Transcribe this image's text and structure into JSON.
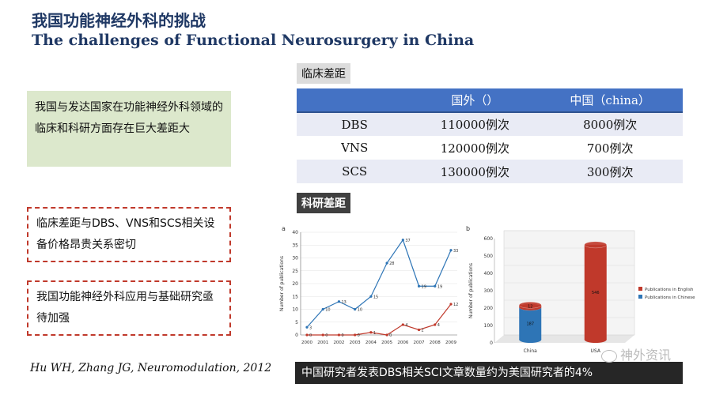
{
  "header": {
    "title_cn": "我国功能神经外科的挑战",
    "title_en": "The challenges of Functional Neurosurgery in China"
  },
  "left": {
    "green_text": "我国与发达国家在功能神经外科领域的临床和科研方面存在巨大差距大",
    "red_box_1": "临床差距与DBS、VNS和SCS相关设备价格昂贵关系密切",
    "red_box_2": "我国功能神经外科应用与基础研究亟待加强",
    "citation": "Hu WH, Zhang JG, Neuromodulation, 2012"
  },
  "clinical": {
    "label": "临床差距",
    "headers": [
      "",
      "国外（）",
      "中国（china）"
    ],
    "rows": [
      {
        "name": "DBS",
        "abroad": "110000例次",
        "china": "8000例次"
      },
      {
        "name": "VNS",
        "abroad": "120000例次",
        "china": "700例次"
      },
      {
        "name": "SCS",
        "abroad": "130000例次",
        "china": "300例次"
      }
    ]
  },
  "research": {
    "label": "科研差距",
    "banner": "中国研究者发表DBS相关SCI文章数量约为美国研究者的4%"
  },
  "watermark": "神外资讯",
  "chart_data": [
    {
      "type": "line",
      "panel": "a",
      "ylabel": "Number of publications",
      "ylim": [
        0,
        40
      ],
      "yticks": [
        0,
        5,
        10,
        15,
        20,
        25,
        30,
        35,
        40
      ],
      "x": [
        "2000",
        "2001",
        "2002",
        "2003",
        "2004",
        "2005",
        "2006",
        "2007",
        "2008",
        "2009"
      ],
      "series": [
        {
          "values": [
            3,
            10,
            13,
            10,
            15,
            28,
            37,
            19,
            19,
            33
          ],
          "color": "#2e75b6"
        },
        {
          "values": [
            0,
            0,
            0,
            0,
            1,
            0,
            4,
            2,
            4,
            12
          ],
          "color": "#c0392b"
        }
      ]
    },
    {
      "type": "bar",
      "panel": "b",
      "ylabel": "Number of publications",
      "ylim": [
        0,
        600
      ],
      "yticks": [
        0,
        100,
        200,
        300,
        400,
        500,
        600
      ],
      "categories": [
        "China",
        "USA"
      ],
      "series": [
        {
          "name": "Publications in English",
          "values": [
            12,
            546
          ],
          "color": "#c0392b"
        },
        {
          "name": "Publications in Chinese",
          "values": [
            187,
            0
          ],
          "color": "#2e75b6"
        }
      ]
    }
  ]
}
